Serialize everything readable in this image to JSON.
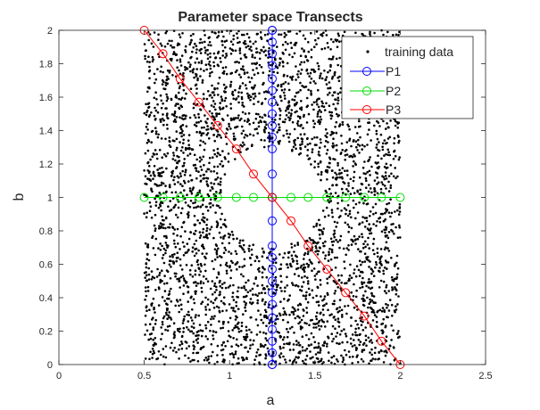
{
  "chart_data": {
    "type": "scatter",
    "title": "Parameter space Transects",
    "xlabel": "a",
    "ylabel": "b",
    "xlim": [
      0,
      2.5
    ],
    "ylim": [
      0,
      2
    ],
    "xticks": [
      "0",
      "0.5",
      "1",
      "1.5",
      "2",
      "2.5"
    ],
    "yticks": [
      "0",
      "0.2",
      "0.4",
      "0.6",
      "0.8",
      "1",
      "1.2",
      "1.4",
      "1.6",
      "1.8",
      "2"
    ],
    "grid": false,
    "legend_position": "top-right",
    "training_data": {
      "name": "training data",
      "color": "#000000",
      "marker": "dot",
      "a_range": [
        0.5,
        2.0
      ],
      "b_range": [
        0,
        2
      ],
      "excluded_circle": {
        "center": [
          1.25,
          1.0
        ],
        "radius": 0.3
      }
    },
    "series": [
      {
        "name": "P1",
        "color": "#0000ff",
        "marker": "circle",
        "x": [
          1.25,
          1.25,
          1.25,
          1.25,
          1.25,
          1.25,
          1.25,
          1.25,
          1.25,
          1.25,
          1.25,
          1.25,
          1.25,
          1.25,
          1.25,
          1.25,
          1.25,
          1.25,
          1.25,
          1.25,
          1.25,
          1.25,
          1.25,
          1.25,
          1.25,
          1.25,
          1.25,
          1.25
        ],
        "y": [
          0.0,
          0.07,
          0.14,
          0.21,
          0.28,
          0.36,
          0.43,
          0.5,
          0.57,
          0.64,
          0.71,
          0.86,
          1.0,
          1.14,
          1.29,
          1.36,
          1.43,
          1.5,
          1.57,
          1.64,
          1.71,
          1.79,
          1.86,
          1.93,
          2.0,
          0.0,
          1.0,
          2.0
        ]
      },
      {
        "name": "P2",
        "color": "#00dd00",
        "marker": "circle",
        "x": [
          0.5,
          0.61,
          0.71,
          0.82,
          0.93,
          1.04,
          1.14,
          1.25,
          1.36,
          1.46,
          1.57,
          1.68,
          1.79,
          1.89,
          2.0
        ],
        "y": [
          1.0,
          1.0,
          1.0,
          1.0,
          1.0,
          1.0,
          1.0,
          1.0,
          1.0,
          1.0,
          1.0,
          1.0,
          1.0,
          1.0,
          1.0
        ]
      },
      {
        "name": "P3",
        "color": "#ff0000",
        "marker": "circle",
        "x": [
          0.5,
          0.61,
          0.71,
          0.82,
          0.93,
          1.04,
          1.14,
          1.25,
          1.36,
          1.46,
          1.57,
          1.68,
          1.79,
          1.89,
          2.0
        ],
        "y": [
          2.0,
          1.86,
          1.71,
          1.57,
          1.43,
          1.29,
          1.14,
          1.0,
          0.86,
          0.71,
          0.57,
          0.43,
          0.29,
          0.14,
          0.0
        ]
      }
    ]
  }
}
